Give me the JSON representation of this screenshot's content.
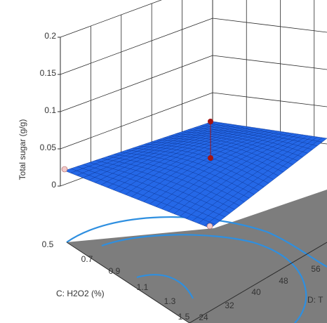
{
  "chart_data": {
    "type": "surface",
    "zlabel": "Total sugar (g/g)",
    "xlabel": "C: H2O2 (%)",
    "ylabel": "D: T",
    "z_ticks": [
      "0",
      "0.05",
      "0.1",
      "0.15",
      "0.2"
    ],
    "zlim": [
      0,
      0.2
    ],
    "x_ticks": [
      "0.5",
      "0.7",
      "0.9",
      "1.1",
      "1.3",
      "1.5"
    ],
    "xlim": [
      0.5,
      1.5
    ],
    "y_ticks": [
      "24",
      "32",
      "40",
      "48",
      "56"
    ],
    "ylim": [
      24,
      56
    ],
    "surface_color": "#1e63e6",
    "floor_color": "#7d7d7d",
    "contour_color": "#2e8fe0",
    "design_point_colors": {
      "above": "#a31515",
      "below": "#f2c9c9"
    },
    "surface_corners_z": {
      "front": 0.01,
      "left": 0.02,
      "back": 0.045,
      "right": 0.035
    }
  }
}
